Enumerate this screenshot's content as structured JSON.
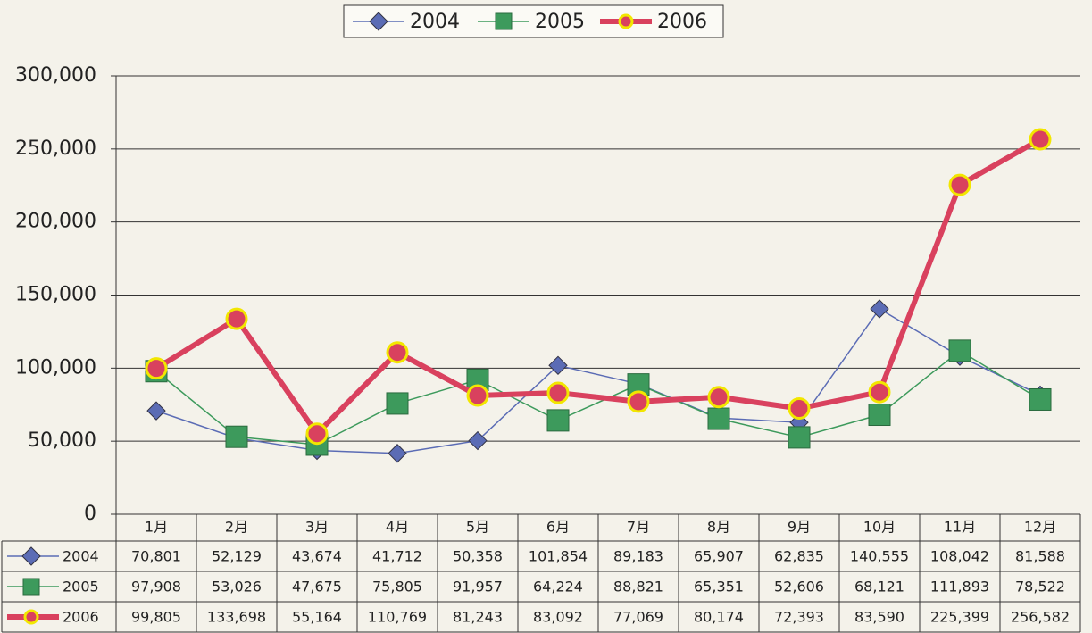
{
  "chart_data": {
    "type": "line",
    "categories": [
      "1月",
      "2月",
      "3月",
      "4月",
      "5月",
      "6月",
      "7月",
      "8月",
      "9月",
      "10月",
      "11月",
      "12月"
    ],
    "series": [
      {
        "name": "2004",
        "color": "#5b6cb5",
        "marker": "diamond",
        "values": [
          70801,
          52129,
          43674,
          41712,
          50358,
          101854,
          89183,
          65907,
          62835,
          140555,
          108042,
          81588
        ],
        "value_labels": [
          "70,801",
          "52,129",
          "43,674",
          "41,712",
          "50,358",
          "101,854",
          "89,183",
          "65,907",
          "62,835",
          "140,555",
          "108,042",
          "81,588"
        ]
      },
      {
        "name": "2005",
        "color": "#3d9a5c",
        "marker": "square",
        "values": [
          97908,
          53026,
          47675,
          75805,
          91957,
          64224,
          88821,
          65351,
          52606,
          68121,
          111893,
          78522
        ],
        "value_labels": [
          "97,908",
          "53,026",
          "47,675",
          "75,805",
          "91,957",
          "64,224",
          "88,821",
          "65,351",
          "52,606",
          "68,121",
          "111,893",
          "78,522"
        ]
      },
      {
        "name": "2006",
        "color": "#d9415e",
        "marker": "circle",
        "values": [
          99805,
          133698,
          55164,
          110769,
          81243,
          83092,
          77069,
          80174,
          72393,
          83590,
          225399,
          256582
        ],
        "value_labels": [
          "99,805",
          "133,698",
          "55,164",
          "110,769",
          "81,243",
          "83,092",
          "77,069",
          "80,174",
          "72,393",
          "83,590",
          "225,399",
          "256,582"
        ]
      }
    ],
    "ylim": [
      0,
      300000
    ],
    "yticks": [
      0,
      {
        "value": 50000,
        "label": "50,000"
      },
      {
        "value": 100000,
        "label": "100,000"
      },
      {
        "value": 150000,
        "label": "150,000"
      },
      {
        "value": 200000,
        "label": "200,000"
      },
      {
        "value": 250000,
        "label": "250,000"
      },
      {
        "value": 300000,
        "label": "300,000"
      }
    ],
    "grid": true,
    "legend": "top"
  }
}
